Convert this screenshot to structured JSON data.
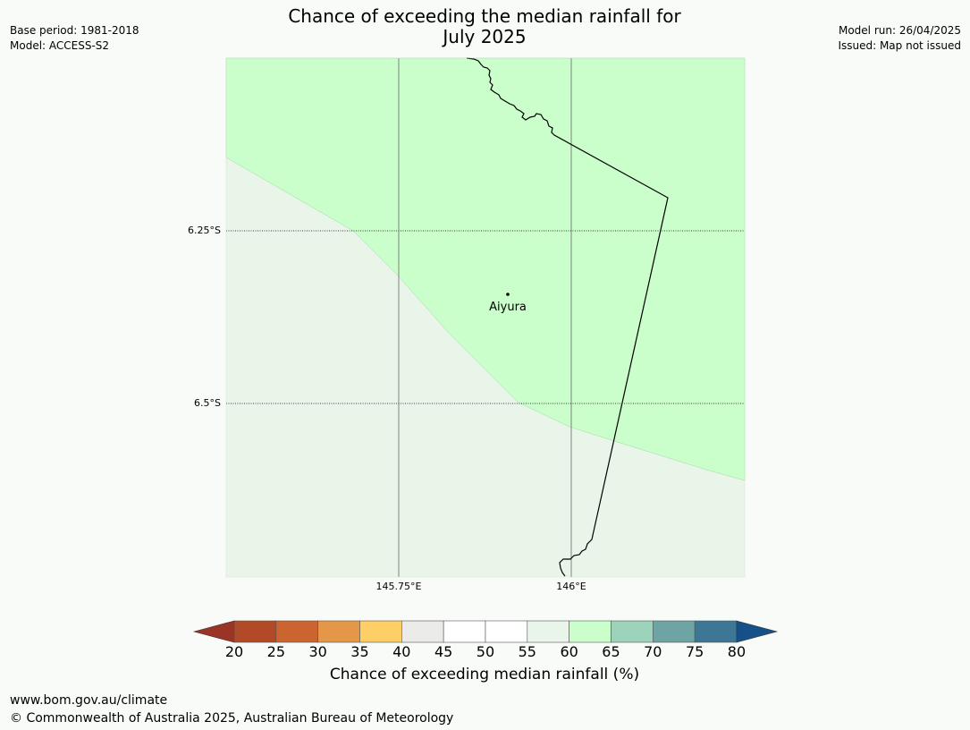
{
  "title_line1": "Chance of exceeding the median rainfall for",
  "title_line2": "July 2025",
  "meta_left": [
    "Base period: 1981-2018",
    "Model: ACCESS-S2"
  ],
  "meta_right": [
    "Model run: 26/04/2025",
    "Issued: Map not issued"
  ],
  "map": {
    "lat_labels": [
      "6.25°S",
      "6.5°S"
    ],
    "lon_labels": [
      "145.75°E",
      "146°E"
    ],
    "place": "Aiyura",
    "colors": {
      "band_60_65": "#caffcb",
      "band_55_60": "#eaf5ea",
      "coast": "#000000",
      "grid": "#666666"
    }
  },
  "colorbar": {
    "ticks": [
      "20",
      "25",
      "30",
      "35",
      "40",
      "45",
      "50",
      "55",
      "60",
      "65",
      "70",
      "75",
      "80"
    ],
    "colors": [
      "#993426",
      "#b24a28",
      "#cc6432",
      "#e49748",
      "#fece67",
      "#ebebe9",
      "#ffffff",
      "#ffffff",
      "#eaf5ea",
      "#caffcb",
      "#9dd2bb",
      "#6fa4a4",
      "#3e7696",
      "#165089"
    ],
    "label": "Chance of exceeding median rainfall (%)"
  },
  "footer": {
    "url": "www.bom.gov.au/climate",
    "copyright": "© Commonwealth of Australia 2025, Australian Bureau of Meteorology"
  }
}
